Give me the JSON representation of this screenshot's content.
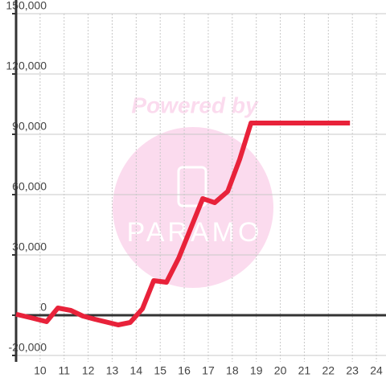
{
  "chart_data": {
    "type": "line",
    "watermark": "Powered by",
    "watermark_brand": "PARAMO",
    "x": [
      9,
      9.6,
      10.27,
      10.74,
      11.28,
      11.78,
      12.28,
      13.25,
      13.75,
      14.26,
      14.73,
      15.26,
      15.77,
      16.27,
      16.77,
      17.27,
      17.81,
      18.31,
      18.78,
      22.9
    ],
    "series": [
      {
        "color": "#e8223a",
        "values": [
          500,
          -1200,
          -3200,
          3600,
          2400,
          -400,
          -2000,
          -4800,
          -3600,
          3200,
          17200,
          16400,
          28400,
          43200,
          58000,
          56000,
          61600,
          77600,
          95600,
          95600
        ]
      }
    ],
    "xlim": [
      9,
      24.4
    ],
    "xticks": [
      10,
      11,
      12,
      13,
      14,
      15,
      16,
      17,
      18,
      19,
      20,
      21,
      22,
      23,
      24
    ],
    "ylim": [
      -23200,
      150000
    ],
    "yticks": [
      {
        "value": -20000,
        "label": "-20,000"
      },
      0,
      {
        "value": 30000,
        "label": "30,000"
      },
      {
        "value": 60000,
        "label": "60,000"
      },
      {
        "value": 90000,
        "label": "90,000"
      },
      {
        "value": 120000,
        "label": "120,000"
      },
      {
        "value": 150000,
        "label": "150,000"
      }
    ],
    "grid": true
  }
}
